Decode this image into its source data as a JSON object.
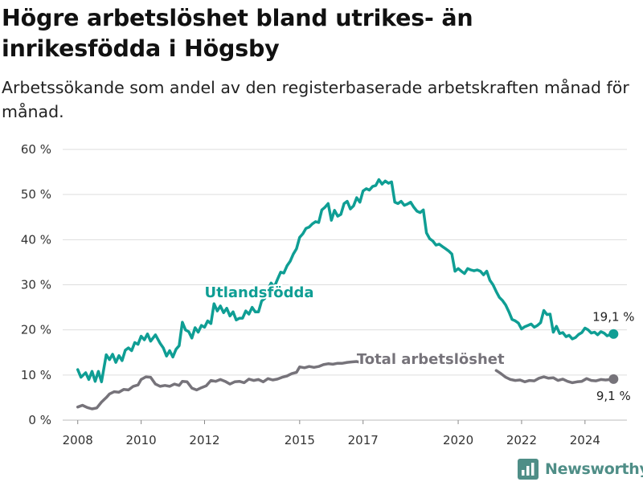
{
  "header": {
    "title": "Högre arbetslöshet bland utrikes- än inrikesfödda i Högsby",
    "subtitle": "Arbetssökande som andel av den registerbaserade arbetskraften månad för månad."
  },
  "brand": {
    "name": "Newsworthy"
  },
  "chart_data": {
    "type": "line",
    "title": "Högre arbetslöshet bland utrikes- än inrikesfödda i Högsby",
    "subtitle": "Arbetssökande som andel av den registerbaserade arbetskraften månad för månad.",
    "xlabel": "",
    "ylabel": "",
    "ylim": [
      0,
      60
    ],
    "xlim": [
      2007.5,
      2025.5
    ],
    "grid": true,
    "y_ticks": [
      0,
      10,
      20,
      30,
      40,
      50,
      60
    ],
    "y_tick_labels": [
      "0 %",
      "10 %",
      "20 %",
      "30 %",
      "40 %",
      "50 %",
      "60 %"
    ],
    "x_ticks": [
      2008,
      2010,
      2012,
      2015,
      2017,
      2020,
      2022,
      2024
    ],
    "x_tick_labels": [
      "2008",
      "2010",
      "2012",
      "2015",
      "2017",
      "2020",
      "2022",
      "2024"
    ],
    "series": [
      {
        "name": "Utlandsfödda",
        "color": "#0f9e94",
        "end_label": "19,1 %",
        "points": [
          [
            2008.0,
            11.2
          ],
          [
            2008.1,
            9.5
          ],
          [
            2008.25,
            10.5
          ],
          [
            2008.35,
            9.0
          ],
          [
            2008.45,
            10.8
          ],
          [
            2008.55,
            8.6
          ],
          [
            2008.65,
            10.8
          ],
          [
            2008.75,
            8.5
          ],
          [
            2008.9,
            14.5
          ],
          [
            2009.0,
            13.4
          ],
          [
            2009.1,
            14.6
          ],
          [
            2009.2,
            12.8
          ],
          [
            2009.3,
            14.3
          ],
          [
            2009.4,
            13.2
          ],
          [
            2009.5,
            15.5
          ],
          [
            2009.6,
            16.0
          ],
          [
            2009.7,
            15.4
          ],
          [
            2009.8,
            17.2
          ],
          [
            2009.9,
            16.8
          ],
          [
            2010.0,
            18.6
          ],
          [
            2010.1,
            17.8
          ],
          [
            2010.2,
            19.1
          ],
          [
            2010.3,
            17.5
          ],
          [
            2010.45,
            18.9
          ],
          [
            2010.6,
            17.0
          ],
          [
            2010.7,
            16.0
          ],
          [
            2010.8,
            14.2
          ],
          [
            2010.9,
            15.4
          ],
          [
            2011.0,
            14.0
          ],
          [
            2011.1,
            15.7
          ],
          [
            2011.2,
            16.5
          ],
          [
            2011.3,
            21.7
          ],
          [
            2011.4,
            20.0
          ],
          [
            2011.5,
            19.6
          ],
          [
            2011.6,
            18.2
          ],
          [
            2011.7,
            20.5
          ],
          [
            2011.8,
            19.5
          ],
          [
            2011.9,
            21.0
          ],
          [
            2012.0,
            20.6
          ],
          [
            2012.1,
            22.0
          ],
          [
            2012.2,
            21.4
          ],
          [
            2012.3,
            25.8
          ],
          [
            2012.4,
            24.2
          ],
          [
            2012.5,
            25.3
          ],
          [
            2012.6,
            23.8
          ],
          [
            2012.7,
            24.8
          ],
          [
            2012.8,
            23.1
          ],
          [
            2012.9,
            24.0
          ],
          [
            2013.0,
            22.2
          ],
          [
            2013.1,
            22.6
          ],
          [
            2013.2,
            22.6
          ],
          [
            2013.3,
            24.2
          ],
          [
            2013.4,
            23.5
          ],
          [
            2013.5,
            25.0
          ],
          [
            2013.6,
            24.0
          ],
          [
            2013.7,
            24.0
          ],
          [
            2013.8,
            26.4
          ],
          [
            2013.9,
            27.0
          ],
          [
            2014.0,
            29.0
          ],
          [
            2014.1,
            30.4
          ],
          [
            2014.2,
            29.5
          ],
          [
            2014.3,
            31.2
          ],
          [
            2014.4,
            32.8
          ],
          [
            2014.5,
            32.6
          ],
          [
            2014.6,
            34.2
          ],
          [
            2014.7,
            35.2
          ],
          [
            2014.8,
            36.8
          ],
          [
            2014.9,
            38.0
          ],
          [
            2015.0,
            40.5
          ],
          [
            2015.1,
            41.3
          ],
          [
            2015.2,
            42.5
          ],
          [
            2015.3,
            42.8
          ],
          [
            2015.4,
            43.5
          ],
          [
            2015.5,
            44.0
          ],
          [
            2015.6,
            43.8
          ],
          [
            2015.7,
            46.6
          ],
          [
            2015.8,
            47.2
          ],
          [
            2015.9,
            48.0
          ],
          [
            2016.0,
            44.3
          ],
          [
            2016.1,
            46.5
          ],
          [
            2016.2,
            45.2
          ],
          [
            2016.3,
            45.6
          ],
          [
            2016.4,
            48.0
          ],
          [
            2016.5,
            48.5
          ],
          [
            2016.6,
            46.8
          ],
          [
            2016.7,
            47.5
          ],
          [
            2016.8,
            49.3
          ],
          [
            2016.9,
            48.3
          ],
          [
            2017.0,
            50.8
          ],
          [
            2017.1,
            51.3
          ],
          [
            2017.2,
            51.0
          ],
          [
            2017.3,
            51.8
          ],
          [
            2017.4,
            52.0
          ],
          [
            2017.5,
            53.3
          ],
          [
            2017.6,
            52.3
          ],
          [
            2017.7,
            53.0
          ],
          [
            2017.8,
            52.5
          ],
          [
            2017.9,
            52.8
          ],
          [
            2018.0,
            48.3
          ],
          [
            2018.1,
            48.0
          ],
          [
            2018.2,
            48.5
          ],
          [
            2018.3,
            47.6
          ],
          [
            2018.4,
            47.9
          ],
          [
            2018.5,
            48.3
          ],
          [
            2018.6,
            47.2
          ],
          [
            2018.7,
            46.3
          ],
          [
            2018.8,
            46.0
          ],
          [
            2018.9,
            46.6
          ],
          [
            2019.0,
            41.5
          ],
          [
            2019.1,
            40.2
          ],
          [
            2019.2,
            39.7
          ],
          [
            2019.3,
            38.8
          ],
          [
            2019.4,
            39.0
          ],
          [
            2019.5,
            38.5
          ],
          [
            2019.6,
            38.0
          ],
          [
            2019.7,
            37.5
          ],
          [
            2019.8,
            36.8
          ],
          [
            2019.9,
            33.0
          ],
          [
            2020.0,
            33.6
          ],
          [
            2020.1,
            33.0
          ],
          [
            2020.2,
            32.5
          ],
          [
            2020.3,
            33.6
          ],
          [
            2020.4,
            33.3
          ],
          [
            2020.5,
            33.1
          ],
          [
            2020.6,
            33.3
          ],
          [
            2020.7,
            33.0
          ],
          [
            2020.8,
            32.2
          ],
          [
            2020.9,
            33.0
          ],
          [
            2021.0,
            31.0
          ],
          [
            2021.1,
            30.0
          ],
          [
            2021.2,
            28.5
          ],
          [
            2021.3,
            27.2
          ],
          [
            2021.4,
            26.5
          ],
          [
            2021.5,
            25.5
          ],
          [
            2021.6,
            24.0
          ],
          [
            2021.7,
            22.3
          ],
          [
            2021.8,
            22.0
          ],
          [
            2021.9,
            21.5
          ],
          [
            2022.0,
            20.2
          ],
          [
            2022.1,
            20.7
          ],
          [
            2022.2,
            21.0
          ],
          [
            2022.3,
            21.3
          ],
          [
            2022.4,
            20.6
          ],
          [
            2022.5,
            21.0
          ],
          [
            2022.6,
            21.6
          ],
          [
            2022.7,
            24.3
          ],
          [
            2022.8,
            23.4
          ],
          [
            2022.9,
            23.5
          ],
          [
            2023.0,
            19.5
          ],
          [
            2023.1,
            20.8
          ],
          [
            2023.2,
            19.2
          ],
          [
            2023.3,
            19.4
          ],
          [
            2023.4,
            18.5
          ],
          [
            2023.5,
            18.8
          ],
          [
            2023.6,
            18.0
          ],
          [
            2023.7,
            18.3
          ],
          [
            2023.8,
            19.0
          ],
          [
            2023.9,
            19.4
          ],
          [
            2024.0,
            20.4
          ],
          [
            2024.1,
            20.0
          ],
          [
            2024.2,
            19.3
          ],
          [
            2024.3,
            19.5
          ],
          [
            2024.4,
            18.9
          ],
          [
            2024.5,
            19.6
          ],
          [
            2024.6,
            19.3
          ],
          [
            2024.7,
            18.7
          ],
          [
            2024.8,
            19.0
          ],
          [
            2024.9,
            19.1
          ]
        ]
      },
      {
        "name": "Total arbetslöshet",
        "color": "#76737a",
        "end_label": "9,1 %",
        "points": [
          [
            2008.0,
            2.9
          ],
          [
            2008.15,
            3.3
          ],
          [
            2008.3,
            2.8
          ],
          [
            2008.45,
            2.5
          ],
          [
            2008.6,
            2.7
          ],
          [
            2008.75,
            4.0
          ],
          [
            2008.9,
            5.0
          ],
          [
            2009.0,
            5.8
          ],
          [
            2009.15,
            6.3
          ],
          [
            2009.3,
            6.2
          ],
          [
            2009.45,
            6.8
          ],
          [
            2009.6,
            6.7
          ],
          [
            2009.75,
            7.5
          ],
          [
            2009.9,
            7.8
          ],
          [
            2010.0,
            9.0
          ],
          [
            2010.15,
            9.6
          ],
          [
            2010.3,
            9.5
          ],
          [
            2010.45,
            8.0
          ],
          [
            2010.6,
            7.5
          ],
          [
            2010.75,
            7.7
          ],
          [
            2010.9,
            7.5
          ],
          [
            2011.05,
            8.0
          ],
          [
            2011.2,
            7.7
          ],
          [
            2011.3,
            8.6
          ],
          [
            2011.45,
            8.5
          ],
          [
            2011.6,
            7.1
          ],
          [
            2011.75,
            6.7
          ],
          [
            2011.9,
            7.2
          ],
          [
            2012.05,
            7.6
          ],
          [
            2012.2,
            8.8
          ],
          [
            2012.35,
            8.6
          ],
          [
            2012.5,
            9.0
          ],
          [
            2012.65,
            8.6
          ],
          [
            2012.8,
            8.0
          ],
          [
            2012.95,
            8.5
          ],
          [
            2013.1,
            8.6
          ],
          [
            2013.25,
            8.3
          ],
          [
            2013.4,
            9.1
          ],
          [
            2013.55,
            8.8
          ],
          [
            2013.7,
            9.0
          ],
          [
            2013.85,
            8.5
          ],
          [
            2014.0,
            9.2
          ],
          [
            2014.15,
            8.9
          ],
          [
            2014.3,
            9.1
          ],
          [
            2014.45,
            9.5
          ],
          [
            2014.6,
            9.8
          ],
          [
            2014.75,
            10.3
          ],
          [
            2014.9,
            10.6
          ],
          [
            2015.0,
            11.8
          ],
          [
            2015.15,
            11.6
          ],
          [
            2015.3,
            11.9
          ],
          [
            2015.45,
            11.7
          ],
          [
            2015.6,
            11.9
          ],
          [
            2015.75,
            12.3
          ],
          [
            2015.9,
            12.5
          ],
          [
            2016.05,
            12.4
          ],
          [
            2016.2,
            12.6
          ],
          [
            2016.35,
            12.6
          ],
          [
            2016.5,
            12.8
          ],
          [
            2016.65,
            12.9
          ],
          [
            2016.8,
            13.0
          ],
          [
            2016.9,
            12.8
          ],
          [
            2017.0,
            12.9
          ]
        ],
        "points_after_label": [
          [
            2021.2,
            11.0
          ],
          [
            2021.35,
            10.3
          ],
          [
            2021.5,
            9.5
          ],
          [
            2021.65,
            9.0
          ],
          [
            2021.8,
            8.8
          ],
          [
            2021.95,
            8.9
          ],
          [
            2022.1,
            8.5
          ],
          [
            2022.25,
            8.8
          ],
          [
            2022.4,
            8.7
          ],
          [
            2022.55,
            9.3
          ],
          [
            2022.7,
            9.6
          ],
          [
            2022.85,
            9.3
          ],
          [
            2023.0,
            9.4
          ],
          [
            2023.15,
            8.8
          ],
          [
            2023.3,
            9.1
          ],
          [
            2023.45,
            8.6
          ],
          [
            2023.6,
            8.3
          ],
          [
            2023.75,
            8.5
          ],
          [
            2023.9,
            8.6
          ],
          [
            2024.05,
            9.2
          ],
          [
            2024.2,
            8.8
          ],
          [
            2024.35,
            8.7
          ],
          [
            2024.5,
            9.0
          ],
          [
            2024.65,
            8.9
          ],
          [
            2024.8,
            9.0
          ],
          [
            2024.9,
            9.1
          ]
        ]
      }
    ]
  }
}
